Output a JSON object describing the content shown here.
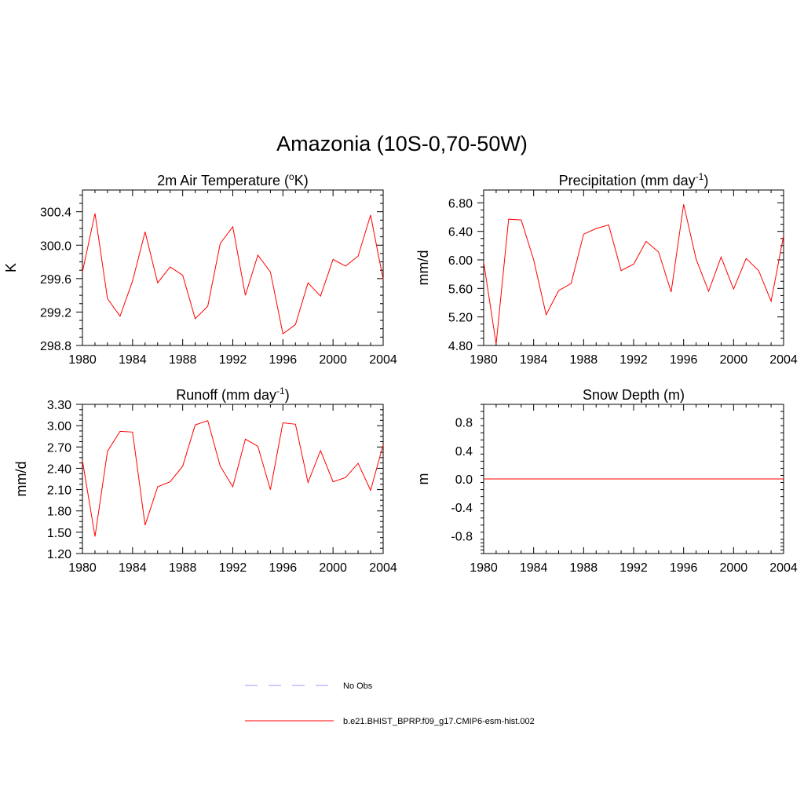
{
  "title": "Amazonia (10S-0,70-50W)",
  "colors": {
    "model": "#ff0000",
    "obs": "#9999ff",
    "axis": "#000000"
  },
  "legend": {
    "obs_label": "No Obs",
    "model_label": "b.e21.BHIST_BPRP.f09_g17.CMIP6-esm-hist.002"
  },
  "chart_data": [
    {
      "type": "line",
      "title": "2m Air Temperature (",
      "title_sup": "o",
      "title_after": "K)",
      "ylabel": "K",
      "xlim": [
        1980,
        2004
      ],
      "ylim": [
        298.8,
        300.66
      ],
      "xticks": [
        "1980",
        "1984",
        "1988",
        "1992",
        "1996",
        "2000",
        "2004"
      ],
      "yticks": [
        "298.8",
        "299.2",
        "299.6",
        "300.0",
        "300.4"
      ],
      "x": [
        1980,
        1981,
        1982,
        1983,
        1984,
        1985,
        1986,
        1987,
        1988,
        1989,
        1990,
        1991,
        1992,
        1993,
        1994,
        1995,
        1996,
        1997,
        1998,
        1999,
        2000,
        2001,
        2002,
        2003,
        2004
      ],
      "series": [
        {
          "name": "b.e21.BHIST_BPRP.f09_g17.CMIP6-esm-hist.002",
          "values": [
            299.68,
            300.38,
            299.36,
            299.15,
            299.57,
            300.16,
            299.55,
            299.74,
            299.64,
            299.12,
            299.27,
            300.02,
            300.22,
            299.4,
            299.88,
            299.68,
            298.94,
            299.05,
            299.55,
            299.39,
            299.83,
            299.75,
            299.87,
            300.36,
            299.59
          ]
        }
      ]
    },
    {
      "type": "line",
      "title": "Precipitation (mm day",
      "title_sup": "-1",
      "title_after": ")",
      "ylabel": "mm/d",
      "xlim": [
        1980,
        2004
      ],
      "ylim": [
        4.8,
        6.98
      ],
      "xticks": [
        "1980",
        "1984",
        "1988",
        "1992",
        "1996",
        "2000",
        "2004"
      ],
      "yticks": [
        "4.80",
        "5.20",
        "5.60",
        "6.00",
        "6.40",
        "6.80"
      ],
      "x": [
        1980,
        1981,
        1982,
        1983,
        1984,
        1985,
        1986,
        1987,
        1988,
        1989,
        1990,
        1991,
        1992,
        1993,
        1994,
        1995,
        1996,
        1997,
        1998,
        1999,
        2000,
        2001,
        2002,
        2003,
        2004
      ],
      "series": [
        {
          "name": "b.e21.BHIST_BPRP.f09_g17.CMIP6-esm-hist.002",
          "values": [
            5.97,
            4.82,
            6.57,
            6.56,
            6.0,
            5.23,
            5.57,
            5.67,
            6.36,
            6.44,
            6.49,
            5.85,
            5.94,
            6.26,
            6.11,
            5.55,
            6.78,
            6.01,
            5.56,
            6.04,
            5.59,
            6.02,
            5.85,
            5.42,
            6.34
          ]
        }
      ]
    },
    {
      "type": "line",
      "title": "Runoff (mm day",
      "title_sup": "-1",
      "title_after": ")",
      "ylabel": "mm/d",
      "xlim": [
        1980,
        2004
      ],
      "ylim": [
        1.2,
        3.3
      ],
      "xticks": [
        "1980",
        "1984",
        "1988",
        "1992",
        "1996",
        "2000",
        "2004"
      ],
      "yticks": [
        "1.20",
        "1.50",
        "1.80",
        "2.10",
        "2.40",
        "2.70",
        "3.00",
        "3.30"
      ],
      "x": [
        1980,
        1981,
        1982,
        1983,
        1984,
        1985,
        1986,
        1987,
        1988,
        1989,
        1990,
        1991,
        1992,
        1993,
        1994,
        1995,
        1996,
        1997,
        1998,
        1999,
        2000,
        2001,
        2002,
        2003,
        2004
      ],
      "series": [
        {
          "name": "b.e21.BHIST_BPRP.f09_g17.CMIP6-esm-hist.002",
          "values": [
            2.51,
            1.44,
            2.64,
            2.92,
            2.91,
            1.6,
            2.14,
            2.21,
            2.43,
            3.01,
            3.07,
            2.43,
            2.14,
            2.81,
            2.71,
            2.1,
            3.04,
            3.02,
            2.2,
            2.65,
            2.21,
            2.27,
            2.47,
            2.09,
            2.73
          ]
        }
      ]
    },
    {
      "type": "line",
      "title": "Snow Depth (m)",
      "title_sup": "",
      "title_after": "",
      "ylabel": "m",
      "xlim": [
        1980,
        2004
      ],
      "ylim": [
        -1.05,
        1.05
      ],
      "xticks": [
        "1980",
        "1984",
        "1988",
        "1992",
        "1996",
        "2000",
        "2004"
      ],
      "yticks": [
        "-0.8",
        "-0.4",
        "0.0",
        "0.4",
        "0.8"
      ],
      "x": [
        1980,
        2004
      ],
      "series": [
        {
          "name": "b.e21.BHIST_BPRP.f09_g17.CMIP6-esm-hist.002",
          "values": [
            0.0,
            0.0
          ]
        }
      ]
    }
  ]
}
